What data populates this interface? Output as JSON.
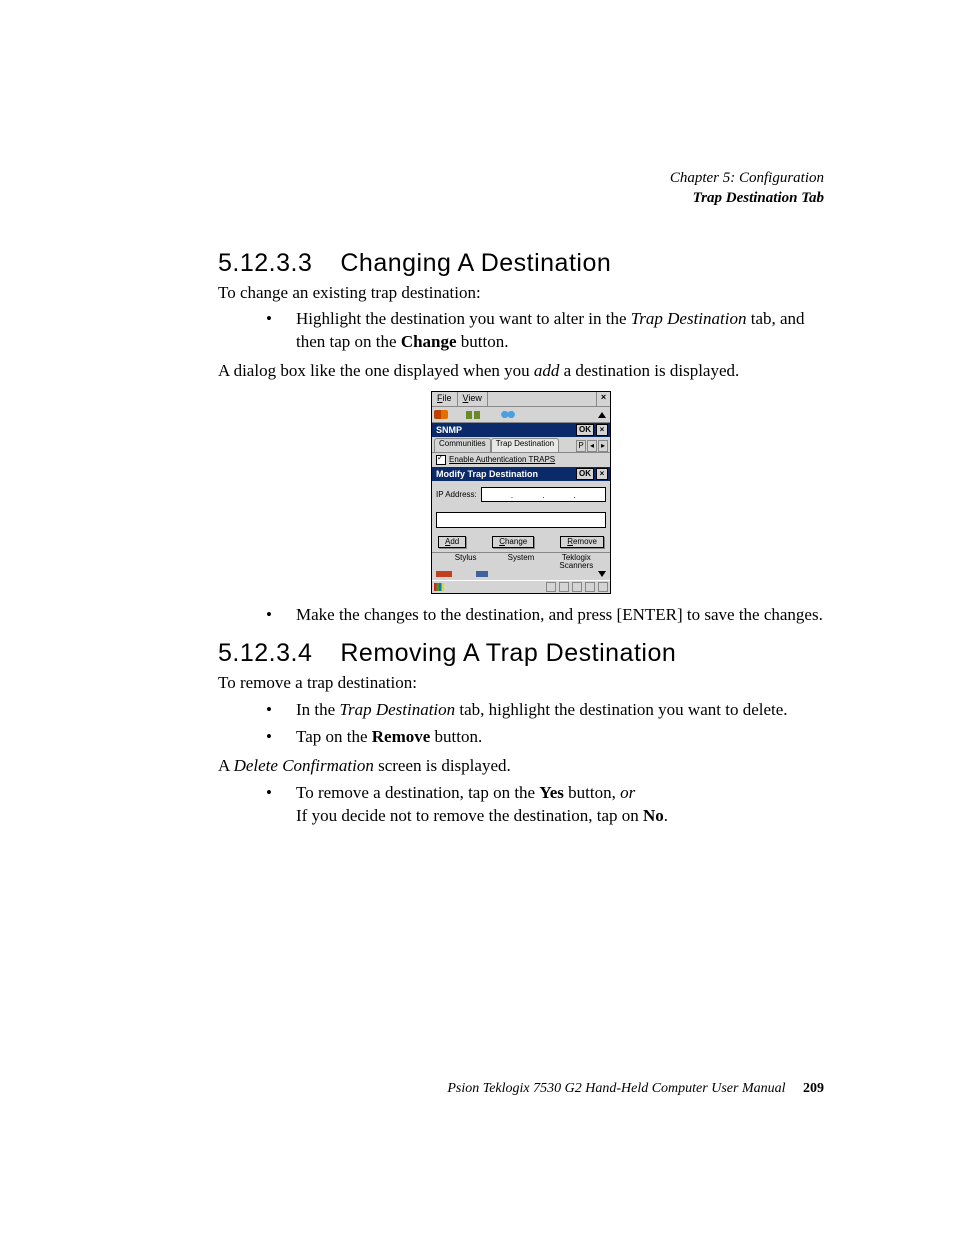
{
  "header": {
    "chapter_line": "Chapter 5: Configuration",
    "section_line": "Trap Destination Tab"
  },
  "section1": {
    "number": "5.12.3.3",
    "title": "Changing A Destination",
    "intro": "To change an existing trap destination:",
    "bullet1_pre": "Highlight the destination you want to alter in the ",
    "bullet1_em": "Trap Destination",
    "bullet1_mid": " tab, and then tap on the ",
    "bullet1_bold": "Change",
    "bullet1_post": " button.",
    "after_pre": "A dialog box like the one displayed when you ",
    "after_em": "add",
    "after_post": " a destination is displayed.",
    "bullet2": "Make the changes to the destination, and press [ENTER] to save the changes."
  },
  "screenshot": {
    "menu_file": "File",
    "menu_view": "View",
    "close_x": "×",
    "title_snmp": "SNMP",
    "ok_label": "OK",
    "x_label": "×",
    "tab_communities": "Communities",
    "tab_trap": "Trap Destination",
    "tab_p": "P",
    "check_label": "Enable Authentication TRAPS",
    "title_modify": "Modify Trap Destination",
    "ip_label": "IP Address:",
    "btn_add": "Add",
    "btn_change": "Change",
    "btn_remove": "Remove",
    "lbl_stylus": "Stylus",
    "lbl_system": "System",
    "lbl_teklogix": "Teklogix Scanners"
  },
  "section2": {
    "number": "5.12.3.4",
    "title": "Removing A Trap Destination",
    "intro": "To remove a trap destination:",
    "bullet1_pre": "In the ",
    "bullet1_em": "Trap Destination",
    "bullet1_post": " tab, highlight the destination you want to delete.",
    "bullet2_pre": "Tap on the ",
    "bullet2_bold": "Remove",
    "bullet2_post": " button.",
    "after_pre": "A ",
    "after_em": "Delete Confirmation",
    "after_post": " screen is displayed.",
    "bullet3_pre": "To remove a destination, tap on the ",
    "bullet3_bold": "Yes",
    "bullet3_mid": " button, ",
    "bullet3_em": "or",
    "bullet3_line2_pre": "If you decide not to remove the destination, tap on ",
    "bullet3_line2_bold": "No",
    "bullet3_line2_post": "."
  },
  "footer": {
    "text": "Psion Teklogix 7530 G2 Hand-Held Computer User Manual",
    "page": "209"
  }
}
